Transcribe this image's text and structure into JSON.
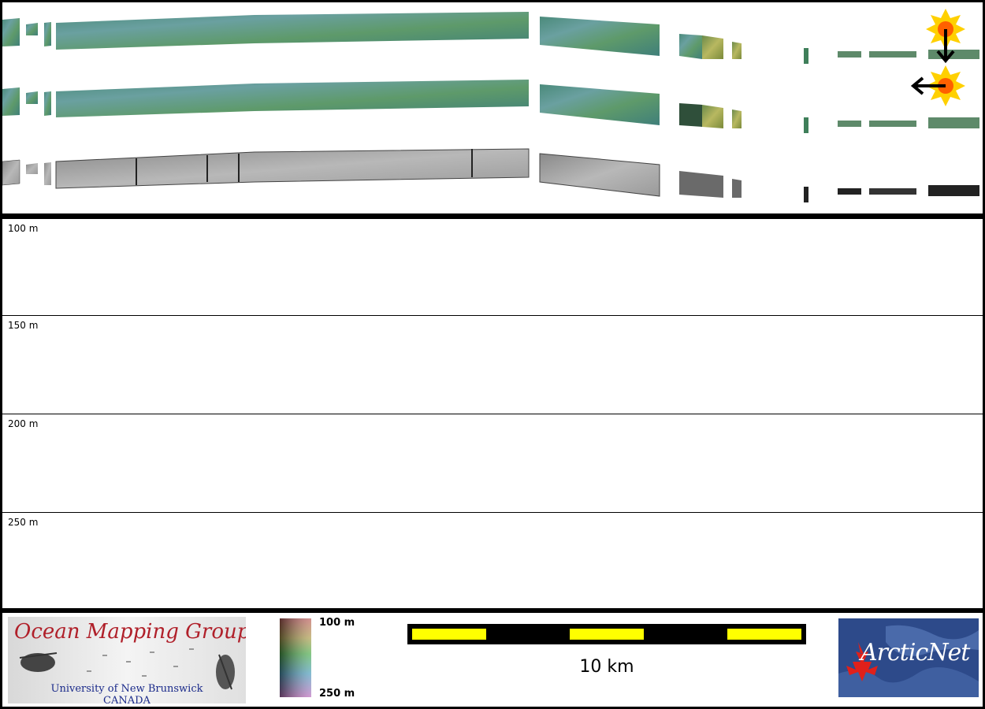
{
  "map": {
    "strips": [
      "bathymetry-backscatter-drape",
      "bathymetry-shaded-relief",
      "backscatter-mosaic"
    ],
    "icons": [
      "sun-illumination-north-icon",
      "sun-illumination-west-icon"
    ]
  },
  "profile": {
    "depth_labels": [
      "100 m",
      "150 m",
      "200 m",
      "250 m"
    ]
  },
  "legend": {
    "omg_logo": {
      "title": "Ocean Mapping Group",
      "line1": "University of New Brunswick",
      "line2": "CANADA"
    },
    "colorbar": {
      "top_label": "100 m",
      "bottom_label": "250 m"
    },
    "scalebar": {
      "label": "10 km"
    },
    "arcticnet_logo": {
      "text": "ArcticNet"
    }
  },
  "colors": {
    "frame": "#000000",
    "scale_fill": "#ffff00",
    "omg_red": "#b0202a",
    "omg_blue": "#1a2a8a",
    "arcticnet_blue": "#2d4a8a"
  }
}
